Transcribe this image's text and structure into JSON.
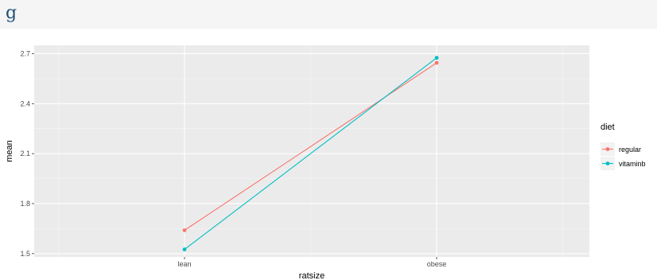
{
  "page": {
    "title": "g"
  },
  "chart_data": {
    "type": "line",
    "x": [
      "lean",
      "obese"
    ],
    "xlabel": "ratsize",
    "ylabel": "mean",
    "ylim": [
      1.48,
      2.75
    ],
    "yticks": [
      1.5,
      1.8,
      2.1,
      2.4,
      2.7
    ],
    "ytick_labels": [
      "1.5",
      "1.8",
      "2.1",
      "2.4",
      "2.7"
    ],
    "grid": true,
    "legend": {
      "title": "diet",
      "position": "right"
    },
    "series": [
      {
        "name": "regular",
        "color": "#F8766D",
        "values": [
          1.64,
          2.645
        ]
      },
      {
        "name": "vitaminb",
        "color": "#00BFC4",
        "values": [
          1.525,
          2.675
        ]
      }
    ]
  }
}
